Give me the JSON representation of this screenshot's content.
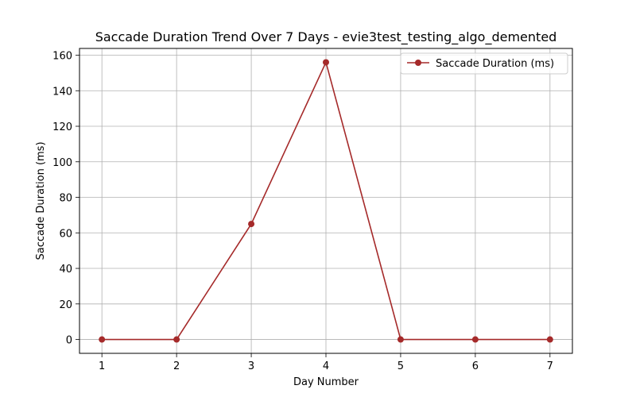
{
  "chart_data": {
    "type": "line",
    "title": "Saccade Duration Trend Over 7 Days - evie3test_testing_algo_demented",
    "xlabel": "Day Number",
    "ylabel": "Saccade Duration (ms)",
    "x": [
      1,
      2,
      3,
      4,
      5,
      6,
      7
    ],
    "series": [
      {
        "name": "Saccade Duration (ms)",
        "values": [
          0,
          0,
          65,
          156,
          0,
          0,
          0
        ],
        "color": "#a52a2a",
        "marker": "circle"
      }
    ],
    "xlim": [
      0.7,
      7.3
    ],
    "ylim": [
      -7.8,
      163.8
    ],
    "xticks": [
      1,
      2,
      3,
      4,
      5,
      6,
      7
    ],
    "yticks": [
      0,
      20,
      40,
      60,
      80,
      100,
      120,
      140,
      160
    ],
    "grid": true,
    "legend_position": "top-right"
  }
}
